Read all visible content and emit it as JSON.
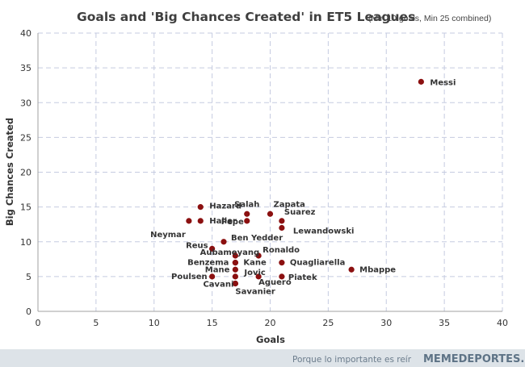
{
  "chart_data": {
    "type": "scatter",
    "title": "Goals and 'Big Chances Created' in ET5 Leagues",
    "subtitle": "(Min 10 goals, Min 25 combined)",
    "xlabel": "Goals",
    "ylabel": "Big Chances Created",
    "xlim": [
      0,
      40
    ],
    "ylim": [
      0,
      40
    ],
    "xticks": [
      0,
      5,
      10,
      15,
      20,
      25,
      30,
      35,
      40
    ],
    "yticks": [
      0,
      5,
      10,
      15,
      20,
      25,
      30,
      35,
      40
    ],
    "grid": true,
    "marker_color": "#8b1010",
    "points": [
      {
        "label": "Messi",
        "x": 33,
        "y": 33
      },
      {
        "label": "Hazard",
        "x": 14,
        "y": 15
      },
      {
        "label": "Salah",
        "x": 18,
        "y": 14
      },
      {
        "label": "Zapata",
        "x": 20,
        "y": 14
      },
      {
        "label": "Haller",
        "x": 14,
        "y": 13
      },
      {
        "label": "Neymar",
        "x": 13,
        "y": 13
      },
      {
        "label": "Suarez",
        "x": 21,
        "y": 13
      },
      {
        "label": "Pepe",
        "x": 18,
        "y": 13
      },
      {
        "label": "Lewandowski",
        "x": 21,
        "y": 12
      },
      {
        "label": "Ben Yedder",
        "x": 16,
        "y": 10
      },
      {
        "label": "Reus",
        "x": 15,
        "y": 9
      },
      {
        "label": "Aubameyang",
        "x": 17,
        "y": 8
      },
      {
        "label": "Ronaldo",
        "x": 19,
        "y": 8
      },
      {
        "label": "Benzema",
        "x": 17,
        "y": 7
      },
      {
        "label": "Kane",
        "x": 17,
        "y": 7
      },
      {
        "label": "Quagliarella",
        "x": 21,
        "y": 7
      },
      {
        "label": "Mbappe",
        "x": 27,
        "y": 6
      },
      {
        "label": "Mane",
        "x": 17,
        "y": 6
      },
      {
        "label": "Jovic",
        "x": 17,
        "y": 5
      },
      {
        "label": "Poulsen",
        "x": 15,
        "y": 5
      },
      {
        "label": "Piatek",
        "x": 21,
        "y": 5
      },
      {
        "label": "Aguero",
        "x": 19,
        "y": 5
      },
      {
        "label": "Cavani",
        "x": 17,
        "y": 4
      },
      {
        "label": "Savanier",
        "x": 17,
        "y": 4
      }
    ]
  },
  "footer": {
    "tagline": "Porque lo importante es reír",
    "brand": "MEMEDEPORTES.COM"
  }
}
